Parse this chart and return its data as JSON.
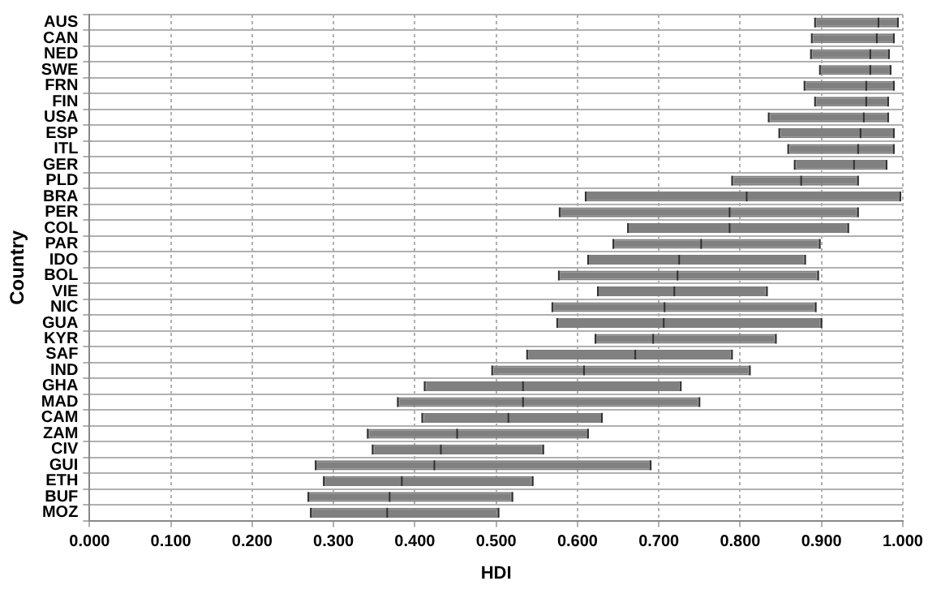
{
  "chart_data": {
    "type": "box",
    "orientation": "horizontal",
    "xlabel": "HDI",
    "ylabel": "Country",
    "color": "#808080",
    "grid": true,
    "legend": false,
    "categories": [
      "AUS",
      "CAN",
      "NED",
      "SWE",
      "FRN",
      "FIN",
      "USA",
      "ESP",
      "ITL",
      "GER",
      "PLD",
      "BRA",
      "PER",
      "COL",
      "PAR",
      "IDO",
      "BOL",
      "VIE",
      "NIC",
      "GUA",
      "KYR",
      "SAF",
      "IND",
      "GHA",
      "MAD",
      "CAM",
      "ZAM",
      "CIV",
      "GUI",
      "ETH",
      "BUF",
      "MOZ"
    ],
    "xlim": [
      0,
      1
    ],
    "xticks": [
      {
        "value": 0,
        "label": "0.000"
      },
      {
        "value": 0.1,
        "label": "0.100"
      },
      {
        "value": 0.2,
        "label": "0.200"
      },
      {
        "value": 0.3,
        "label": "0.300"
      },
      {
        "value": 0.4,
        "label": "0.400"
      },
      {
        "value": 0.5,
        "label": "0.500"
      },
      {
        "value": 0.6,
        "label": "0.600"
      },
      {
        "value": 0.7,
        "label": "0.700"
      },
      {
        "value": 0.8,
        "label": "0.800"
      },
      {
        "value": 0.9,
        "label": "0.900"
      },
      {
        "value": 1,
        "label": "1.000"
      }
    ],
    "boxes": [
      {
        "low": 0.892,
        "q1": 0.892,
        "median": 0.97,
        "q3": 0.994,
        "high": 0.994
      },
      {
        "low": 0.888,
        "q1": 0.888,
        "median": 0.968,
        "q3": 0.989,
        "high": 0.989
      },
      {
        "low": 0.887,
        "q1": 0.887,
        "median": 0.96,
        "q3": 0.983,
        "high": 0.983
      },
      {
        "low": 0.898,
        "q1": 0.898,
        "median": 0.96,
        "q3": 0.985,
        "high": 0.985
      },
      {
        "low": 0.879,
        "q1": 0.879,
        "median": 0.955,
        "q3": 0.989,
        "high": 0.989
      },
      {
        "low": 0.892,
        "q1": 0.892,
        "median": 0.955,
        "q3": 0.982,
        "high": 0.982
      },
      {
        "low": 0.835,
        "q1": 0.835,
        "median": 0.952,
        "q3": 0.982,
        "high": 0.982
      },
      {
        "low": 0.848,
        "q1": 0.848,
        "median": 0.948,
        "q3": 0.989,
        "high": 0.989
      },
      {
        "low": 0.859,
        "q1": 0.859,
        "median": 0.945,
        "q3": 0.989,
        "high": 0.989
      },
      {
        "low": 0.867,
        "q1": 0.867,
        "median": 0.94,
        "q3": 0.98,
        "high": 0.98
      },
      {
        "low": 0.79,
        "q1": 0.79,
        "median": 0.875,
        "q3": 0.945,
        "high": 0.945
      },
      {
        "low": 0.61,
        "q1": 0.61,
        "median": 0.808,
        "q3": 0.997,
        "high": 0.997
      },
      {
        "low": 0.578,
        "q1": 0.578,
        "median": 0.787,
        "q3": 0.945,
        "high": 0.945
      },
      {
        "low": 0.662,
        "q1": 0.662,
        "median": 0.787,
        "q3": 0.933,
        "high": 0.933
      },
      {
        "low": 0.644,
        "q1": 0.644,
        "median": 0.752,
        "q3": 0.898,
        "high": 0.898
      },
      {
        "low": 0.613,
        "q1": 0.613,
        "median": 0.725,
        "q3": 0.88,
        "high": 0.88
      },
      {
        "low": 0.577,
        "q1": 0.577,
        "median": 0.723,
        "q3": 0.896,
        "high": 0.896
      },
      {
        "low": 0.625,
        "q1": 0.625,
        "median": 0.719,
        "q3": 0.833,
        "high": 0.833
      },
      {
        "low": 0.569,
        "q1": 0.569,
        "median": 0.707,
        "q3": 0.893,
        "high": 0.893
      },
      {
        "low": 0.575,
        "q1": 0.575,
        "median": 0.706,
        "q3": 0.9,
        "high": 0.9
      },
      {
        "low": 0.622,
        "q1": 0.622,
        "median": 0.693,
        "q3": 0.844,
        "high": 0.844
      },
      {
        "low": 0.538,
        "q1": 0.538,
        "median": 0.671,
        "q3": 0.79,
        "high": 0.79
      },
      {
        "low": 0.495,
        "q1": 0.495,
        "median": 0.608,
        "q3": 0.812,
        "high": 0.812
      },
      {
        "low": 0.412,
        "q1": 0.412,
        "median": 0.533,
        "q3": 0.727,
        "high": 0.727
      },
      {
        "low": 0.379,
        "q1": 0.379,
        "median": 0.533,
        "q3": 0.75,
        "high": 0.75
      },
      {
        "low": 0.409,
        "q1": 0.409,
        "median": 0.515,
        "q3": 0.63,
        "high": 0.63
      },
      {
        "low": 0.342,
        "q1": 0.342,
        "median": 0.452,
        "q3": 0.613,
        "high": 0.613
      },
      {
        "low": 0.348,
        "q1": 0.348,
        "median": 0.432,
        "q3": 0.558,
        "high": 0.558
      },
      {
        "low": 0.278,
        "q1": 0.278,
        "median": 0.424,
        "q3": 0.69,
        "high": 0.69
      },
      {
        "low": 0.288,
        "q1": 0.288,
        "median": 0.384,
        "q3": 0.545,
        "high": 0.545
      },
      {
        "low": 0.269,
        "q1": 0.269,
        "median": 0.369,
        "q3": 0.52,
        "high": 0.52
      },
      {
        "low": 0.272,
        "q1": 0.272,
        "median": 0.366,
        "q3": 0.503,
        "high": 0.503
      }
    ]
  }
}
